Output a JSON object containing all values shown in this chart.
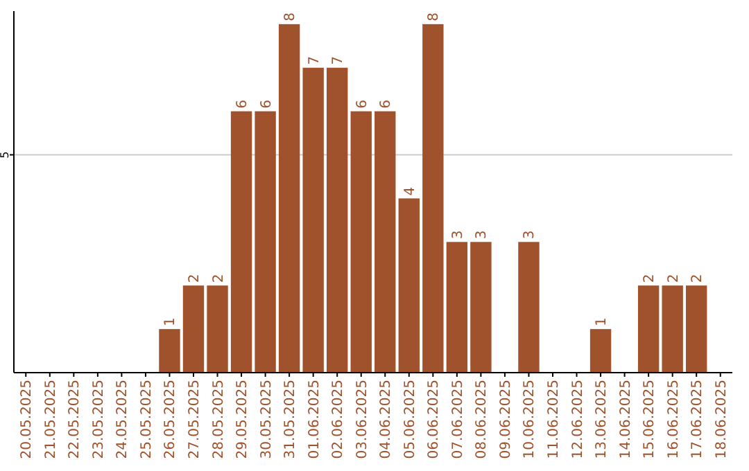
{
  "chart_data": {
    "type": "bar",
    "categories": [
      "20.05.2025",
      "21.05.2025",
      "22.05.2025",
      "23.05.2025",
      "24.05.2025",
      "25.05.2025",
      "26.05.2025",
      "27.05.2025",
      "28.05.2025",
      "29.05.2025",
      "30.05.2025",
      "31.05.2025",
      "01.06.2025",
      "02.06.2025",
      "03.06.2025",
      "04.06.2025",
      "05.06.2025",
      "06.06.2025",
      "07.06.2025",
      "08.06.2025",
      "09.06.2025",
      "10.06.2025",
      "11.06.2025",
      "12.06.2025",
      "13.06.2025",
      "14.06.2025",
      "15.06.2025",
      "16.06.2025",
      "17.06.2025",
      "18.06.2025"
    ],
    "values": [
      0,
      0,
      0,
      0,
      0,
      0,
      1,
      2,
      2,
      6,
      6,
      8,
      7,
      7,
      6,
      6,
      4,
      8,
      3,
      3,
      0,
      3,
      0,
      0,
      1,
      0,
      2,
      2,
      2,
      0
    ],
    "value_labels": [
      null,
      null,
      null,
      null,
      null,
      null,
      "1",
      "2",
      "2",
      "6",
      "6",
      "8",
      "7",
      "7",
      "6",
      "6",
      "4",
      "8",
      "3",
      "3",
      null,
      "3",
      null,
      null,
      "1",
      null,
      "2",
      "2",
      "2",
      null
    ],
    "color": "#a0522d",
    "ylim": [
      0,
      8.3
    ],
    "yticks": [
      5
    ],
    "grid": "y"
  }
}
